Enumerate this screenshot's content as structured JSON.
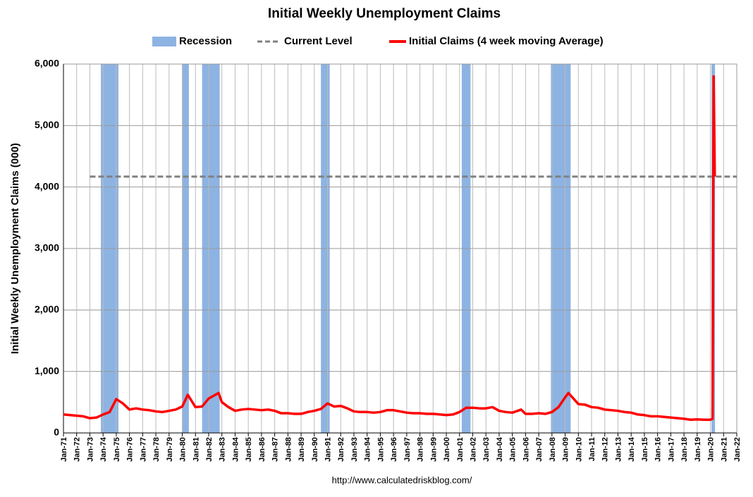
{
  "chart_data": {
    "type": "line",
    "title": "Initial Weekly Unemployment Claims",
    "ylabel": "Initial Weekly Unemployment Claims (000)",
    "source": "http://www.calculatedriskblog.com/",
    "xlim": [
      "Jan-71",
      "Jan-22"
    ],
    "xticks": [
      "Jan-71",
      "Jan-72",
      "Jan-73",
      "Jan-74",
      "Jan-75",
      "Jan-76",
      "Jan-77",
      "Jan-78",
      "Jan-79",
      "Jan-80",
      "Jan-81",
      "Jan-82",
      "Jan-83",
      "Jan-84",
      "Jan-85",
      "Jan-86",
      "Jan-87",
      "Jan-88",
      "Jan-89",
      "Jan-90",
      "Jan-91",
      "Jan-92",
      "Jan-93",
      "Jan-94",
      "Jan-95",
      "Jan-96",
      "Jan-97",
      "Jan-98",
      "Jan-99",
      "Jan-00",
      "Jan-01",
      "Jan-02",
      "Jan-03",
      "Jan-04",
      "Jan-05",
      "Jan-06",
      "Jan-07",
      "Jan-08",
      "Jan-09",
      "Jan-10",
      "Jan-11",
      "Jan-12",
      "Jan-13",
      "Jan-14",
      "Jan-15",
      "Jan-16",
      "Jan-17",
      "Jan-18",
      "Jan-19",
      "Jan-20",
      "Jan-21",
      "Jan-22"
    ],
    "ylim": [
      0,
      6000
    ],
    "yticks": [
      0,
      {
        "value": 1000,
        "label": "1,000"
      },
      {
        "value": 2000,
        "label": "2,000"
      },
      {
        "value": 3000,
        "label": "3,000"
      },
      {
        "value": 4000,
        "label": "4,000"
      },
      {
        "value": 5000,
        "label": "5,000"
      },
      {
        "value": 6000,
        "label": "6,000"
      }
    ],
    "grid": true,
    "recession": {
      "name": "Recession",
      "color": "#8db3e2",
      "periods": [
        [
          "Nov-73",
          "Mar-75"
        ],
        [
          "Jan-80",
          "Jul-80"
        ],
        [
          "Jul-81",
          "Nov-82"
        ],
        [
          "Jul-90",
          "Mar-91"
        ],
        [
          "Mar-01",
          "Nov-01"
        ],
        [
          "Dec-07",
          "Jun-09"
        ],
        [
          "Feb-20",
          "Apr-20"
        ]
      ]
    },
    "current_level": {
      "name": "Current Level",
      "value": 4170,
      "start": "Jan-73",
      "color": "#808080"
    },
    "series": [
      {
        "name": "Initial Claims (4 week moving Average)",
        "color": "#ff0000",
        "x": [
          "Jan-71",
          "Jul-71",
          "Jan-72",
          "Jul-72",
          "Jan-73",
          "Jul-73",
          "Jan-74",
          "Jul-74",
          "Jan-75",
          "Jul-75",
          "Jan-76",
          "Jul-76",
          "Jan-77",
          "Jul-77",
          "Jan-78",
          "Jul-78",
          "Jan-79",
          "Jul-79",
          "Jan-80",
          "Jun-80",
          "Jan-81",
          "Jul-81",
          "Jan-82",
          "Oct-82",
          "Jan-83",
          "Jul-83",
          "Jan-84",
          "Jul-84",
          "Jan-85",
          "Jul-85",
          "Jan-86",
          "Jul-86",
          "Jan-87",
          "Jul-87",
          "Jan-88",
          "Jul-88",
          "Jan-89",
          "Jul-89",
          "Jan-90",
          "Jul-90",
          "Jan-91",
          "Jul-91",
          "Jan-92",
          "Jul-92",
          "Jan-93",
          "Jul-93",
          "Jan-94",
          "Jul-94",
          "Jan-95",
          "Jul-95",
          "Jan-96",
          "Jul-96",
          "Jan-97",
          "Jul-97",
          "Jan-98",
          "Jul-98",
          "Jan-99",
          "Jul-99",
          "Jan-00",
          "Jul-00",
          "Jan-01",
          "Jul-01",
          "Jan-02",
          "Jul-02",
          "Jan-03",
          "Jul-03",
          "Jan-04",
          "Jul-04",
          "Jan-05",
          "Sep-05",
          "Jan-06",
          "Jul-06",
          "Jan-07",
          "Jul-07",
          "Jan-08",
          "Jul-08",
          "Jan-09",
          "Apr-09",
          "Jan-10",
          "Jul-10",
          "Jan-11",
          "Jul-11",
          "Jan-12",
          "Jul-12",
          "Jan-13",
          "Jul-13",
          "Jan-14",
          "Jul-14",
          "Jan-15",
          "Jul-15",
          "Jan-16",
          "Jul-16",
          "Jan-17",
          "Jul-17",
          "Jan-18",
          "Jul-18",
          "Jan-19",
          "Jul-19",
          "Jan-20",
          "Mar-20",
          "Apr-20",
          "May-20"
        ],
        "values": [
          300,
          290,
          280,
          270,
          240,
          250,
          300,
          340,
          550,
          480,
          380,
          400,
          380,
          370,
          350,
          340,
          360,
          380,
          430,
          620,
          420,
          430,
          560,
          650,
          500,
          420,
          360,
          380,
          390,
          380,
          370,
          380,
          360,
          320,
          320,
          310,
          310,
          340,
          360,
          390,
          480,
          430,
          440,
          400,
          350,
          340,
          340,
          330,
          340,
          370,
          370,
          350,
          330,
          320,
          320,
          310,
          310,
          300,
          290,
          300,
          340,
          410,
          410,
          400,
          400,
          420,
          360,
          340,
          330,
          380,
          310,
          310,
          320,
          310,
          340,
          420,
          580,
          650,
          470,
          460,
          420,
          410,
          380,
          370,
          360,
          340,
          330,
          300,
          290,
          270,
          270,
          260,
          250,
          240,
          230,
          215,
          220,
          215,
          215,
          230,
          5800,
          4170
        ]
      }
    ]
  }
}
